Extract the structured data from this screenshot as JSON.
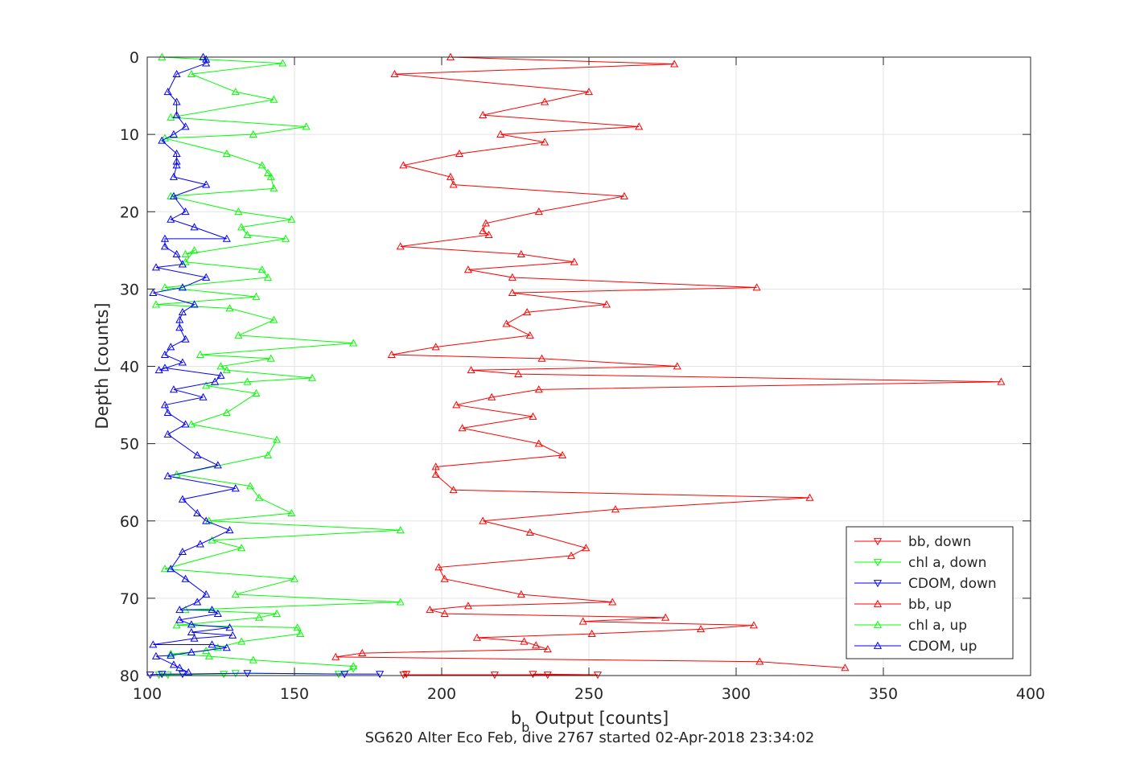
{
  "chart_data": {
    "type": "line",
    "title": "",
    "xlabel_main": "b",
    "xlabel_sub": "b",
    "xlabel_rest": " Output [counts]",
    "ylabel": "Depth [counts]",
    "caption": "SG620 Alter Eco Feb, dive 2767 started 02-Apr-2018 23:34:02",
    "xlim": [
      100,
      400
    ],
    "ylim": [
      0,
      80
    ],
    "y_reversed": true,
    "grid": true,
    "legend_position": "lower-right inside",
    "xticks": [
      100,
      150,
      200,
      250,
      300,
      350,
      400
    ],
    "xtick_labels": [
      "100",
      "150",
      "200",
      "250",
      "300",
      "350",
      "400"
    ],
    "yticks": [
      0,
      10,
      20,
      30,
      40,
      50,
      60,
      70,
      80
    ],
    "ytick_labels": [
      "0",
      "10",
      "20",
      "30",
      "40",
      "50",
      "60",
      "70",
      "80"
    ],
    "series": [
      {
        "name": "bb, down",
        "color": "#ff0000",
        "marker": "triangle-down",
        "points": [
          [
            188,
            79.8
          ],
          [
            187,
            79.9
          ],
          [
            218,
            79.9
          ],
          [
            236,
            79.9
          ],
          [
            253,
            79.9
          ],
          [
            231,
            79.8
          ]
        ]
      },
      {
        "name": "chl a, down",
        "color": "#00ff00",
        "marker": "triangle-down",
        "points": [
          [
            104,
            79.9
          ],
          [
            107,
            79.9
          ],
          [
            126,
            79.8
          ],
          [
            130,
            79.7
          ],
          [
            165,
            79.8
          ],
          [
            170,
            79.1
          ]
        ]
      },
      {
        "name": "CDOM, down",
        "color": "#0000ff",
        "marker": "triangle-down",
        "points": [
          [
            101,
            79.9
          ],
          [
            105,
            79.8
          ],
          [
            112,
            79.8
          ],
          [
            134,
            79.7
          ],
          [
            167,
            79.8
          ],
          [
            179,
            79.8
          ]
        ]
      },
      {
        "name": "bb, up",
        "color": "#ff0000",
        "marker": "triangle-up",
        "points": [
          [
            337,
            79.0
          ],
          [
            308,
            78.2
          ],
          [
            164,
            77.6
          ],
          [
            173,
            77.1
          ],
          [
            236,
            76.6
          ],
          [
            232,
            76.1
          ],
          [
            228,
            75.6
          ],
          [
            212,
            75.1
          ],
          [
            251,
            74.6
          ],
          [
            288,
            74.0
          ],
          [
            306,
            73.5
          ],
          [
            248,
            73.0
          ],
          [
            276,
            72.5
          ],
          [
            201,
            72.0
          ],
          [
            196,
            71.5
          ],
          [
            209,
            71.0
          ],
          [
            258,
            70.5
          ],
          [
            227,
            69.5
          ],
          [
            201,
            67.5
          ],
          [
            199,
            66.0
          ],
          [
            244,
            64.5
          ],
          [
            249,
            63.5
          ],
          [
            230,
            61.5
          ],
          [
            214,
            60.0
          ],
          [
            259,
            58.5
          ],
          [
            325,
            57.0
          ],
          [
            204,
            56.0
          ],
          [
            198,
            54.0
          ],
          [
            198,
            53.0
          ],
          [
            241,
            51.5
          ],
          [
            233,
            50.0
          ],
          [
            207,
            48.0
          ],
          [
            231,
            46.5
          ],
          [
            205,
            45.0
          ],
          [
            217,
            44.0
          ],
          [
            233,
            43.0
          ],
          [
            390,
            42.0
          ],
          [
            226,
            41.0
          ],
          [
            210,
            40.5
          ],
          [
            280,
            40.0
          ],
          [
            234,
            39.0
          ],
          [
            183,
            38.5
          ],
          [
            198,
            37.5
          ],
          [
            230,
            36.0
          ],
          [
            222,
            34.5
          ],
          [
            229,
            33.0
          ],
          [
            256,
            32.0
          ],
          [
            224,
            30.5
          ],
          [
            307,
            29.8
          ],
          [
            224,
            28.5
          ],
          [
            209,
            27.5
          ],
          [
            245,
            26.5
          ],
          [
            227,
            25.5
          ],
          [
            186,
            24.5
          ],
          [
            216,
            23.0
          ],
          [
            214,
            22.5
          ],
          [
            215,
            21.5
          ],
          [
            233,
            20.0
          ],
          [
            262,
            18.0
          ],
          [
            204,
            16.5
          ],
          [
            203,
            15.5
          ],
          [
            187,
            14.0
          ],
          [
            206,
            12.5
          ],
          [
            235,
            11.0
          ],
          [
            220,
            10.0
          ],
          [
            267,
            9.0
          ],
          [
            214,
            7.5
          ],
          [
            235,
            5.8
          ],
          [
            250,
            4.5
          ],
          [
            184,
            2.2
          ],
          [
            279,
            0.9
          ],
          [
            203,
            0.0
          ]
        ]
      },
      {
        "name": "chl a, up",
        "color": "#00ff00",
        "marker": "triangle-up",
        "points": [
          [
            170,
            78.8
          ],
          [
            136,
            78.0
          ],
          [
            121,
            77.5
          ],
          [
            108,
            77.2
          ],
          [
            120,
            76.8
          ],
          [
            124,
            76.4
          ],
          [
            132,
            75.6
          ],
          [
            152,
            74.6
          ],
          [
            151,
            73.8
          ],
          [
            110,
            73.5
          ],
          [
            138,
            72.5
          ],
          [
            144,
            72.0
          ],
          [
            113,
            71.5
          ],
          [
            186,
            70.5
          ],
          [
            130,
            69.5
          ],
          [
            150,
            67.5
          ],
          [
            106,
            66.2
          ],
          [
            132,
            63.5
          ],
          [
            122,
            62.5
          ],
          [
            186,
            61.2
          ],
          [
            121,
            60.0
          ],
          [
            149,
            59.0
          ],
          [
            138,
            57.0
          ],
          [
            135,
            55.5
          ],
          [
            110,
            54.0
          ],
          [
            141,
            51.5
          ],
          [
            144,
            49.5
          ],
          [
            115,
            47.5
          ],
          [
            127,
            46.0
          ],
          [
            137,
            43.5
          ],
          [
            120,
            42.5
          ],
          [
            134,
            42.0
          ],
          [
            156,
            41.5
          ],
          [
            127,
            40.5
          ],
          [
            125,
            40.0
          ],
          [
            142,
            39.0
          ],
          [
            118,
            38.5
          ],
          [
            170,
            37.0
          ],
          [
            131,
            36.0
          ],
          [
            143,
            34.0
          ],
          [
            128,
            32.5
          ],
          [
            103,
            32.0
          ],
          [
            137,
            31.0
          ],
          [
            106,
            29.8
          ],
          [
            141,
            28.5
          ],
          [
            139,
            27.5
          ],
          [
            113,
            26.5
          ],
          [
            116,
            25.0
          ],
          [
            113,
            25.5
          ],
          [
            147,
            23.5
          ],
          [
            134,
            23.0
          ],
          [
            132,
            22.0
          ],
          [
            149,
            21.0
          ],
          [
            131,
            20.0
          ],
          [
            108,
            18.0
          ],
          [
            143,
            17.0
          ],
          [
            142,
            15.5
          ],
          [
            141,
            15.0
          ],
          [
            139,
            14.0
          ],
          [
            127,
            12.5
          ],
          [
            106,
            10.5
          ],
          [
            136,
            10.0
          ],
          [
            154,
            9.0
          ],
          [
            108,
            7.8
          ],
          [
            143,
            5.5
          ],
          [
            130,
            4.5
          ],
          [
            115,
            2.2
          ],
          [
            146,
            0.8
          ],
          [
            105,
            0.0
          ]
        ]
      },
      {
        "name": "CDOM, up",
        "color": "#0000ff",
        "marker": "triangle-up",
        "points": [
          [
            114,
            79.6
          ],
          [
            111,
            79.0
          ],
          [
            109,
            78.6
          ],
          [
            103,
            77.5
          ],
          [
            108,
            77.4
          ],
          [
            115,
            77.0
          ],
          [
            127,
            76.4
          ],
          [
            122,
            76.0
          ],
          [
            102,
            76.0
          ],
          [
            116,
            75.2
          ],
          [
            129,
            74.8
          ],
          [
            115,
            74.4
          ],
          [
            128,
            73.8
          ],
          [
            115,
            73.4
          ],
          [
            111,
            72.8
          ],
          [
            124,
            72.0
          ],
          [
            122,
            71.5
          ],
          [
            111,
            71.5
          ],
          [
            117,
            70.5
          ],
          [
            120,
            69.5
          ],
          [
            113,
            67.5
          ],
          [
            108,
            66.2
          ],
          [
            112,
            64.0
          ],
          [
            118,
            63.0
          ],
          [
            128,
            61.2
          ],
          [
            120,
            60.0
          ],
          [
            117,
            59.0
          ],
          [
            112,
            57.2
          ],
          [
            130,
            55.8
          ],
          [
            107,
            54.2
          ],
          [
            124,
            52.8
          ],
          [
            117,
            51.5
          ],
          [
            107,
            48.8
          ],
          [
            113,
            47.5
          ],
          [
            107,
            46.0
          ],
          [
            106,
            45.0
          ],
          [
            119,
            44.0
          ],
          [
            109,
            43.0
          ],
          [
            123,
            42.0
          ],
          [
            125,
            41.2
          ],
          [
            106,
            40.2
          ],
          [
            104,
            40.5
          ],
          [
            112,
            39.5
          ],
          [
            106,
            38.5
          ],
          [
            108,
            37.5
          ],
          [
            113,
            36.5
          ],
          [
            111,
            35.0
          ],
          [
            111,
            34.0
          ],
          [
            112,
            33.0
          ],
          [
            116,
            32.0
          ],
          [
            102,
            30.5
          ],
          [
            112,
            29.8
          ],
          [
            120,
            28.5
          ],
          [
            103,
            27.2
          ],
          [
            112,
            26.8
          ],
          [
            110,
            25.5
          ],
          [
            106,
            24.5
          ],
          [
            106,
            23.5
          ],
          [
            127,
            23.5
          ],
          [
            116,
            22.0
          ],
          [
            108,
            21.0
          ],
          [
            113,
            20.0
          ],
          [
            109,
            18.0
          ],
          [
            120,
            16.5
          ],
          [
            109,
            15.5
          ],
          [
            110,
            14.0
          ],
          [
            110,
            13.5
          ],
          [
            110,
            12.5
          ],
          [
            105,
            10.8
          ],
          [
            109,
            10.0
          ],
          [
            113,
            9.0
          ],
          [
            110,
            7.5
          ],
          [
            110,
            5.8
          ],
          [
            107,
            4.5
          ],
          [
            110,
            2.2
          ],
          [
            120,
            0.8
          ],
          [
            120,
            0.3
          ],
          [
            119,
            0.0
          ]
        ]
      }
    ]
  }
}
